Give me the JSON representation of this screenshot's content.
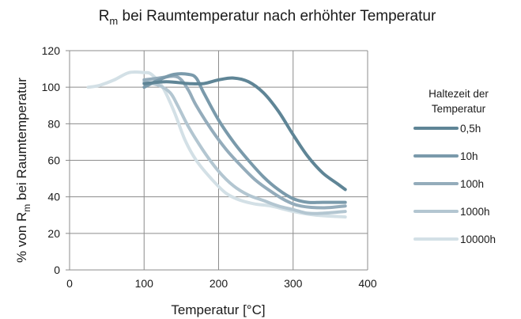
{
  "chart_data": {
    "type": "line",
    "title": {
      "main": "R",
      "sub": "m",
      "rest": " bei Raumtemperatur nach erhöhter Temperatur"
    },
    "xlabel": "Temperatur [°C]",
    "ylabel": {
      "pre": "% von R",
      "sub": "m",
      "post": " bei Raumtemperatur"
    },
    "xlim": [
      0,
      400
    ],
    "ylim": [
      0,
      120
    ],
    "x_ticks": [
      0,
      100,
      200,
      300,
      400
    ],
    "y_ticks": [
      0,
      20,
      40,
      60,
      80,
      100,
      120
    ],
    "grid": true,
    "legend_position": "right",
    "legend_title": [
      "Haltezeit der",
      "Temperatur"
    ],
    "series": [
      {
        "name": "0,5h",
        "color": "#5f8596",
        "points": [
          [
            100,
            102
          ],
          [
            130,
            103
          ],
          [
            160,
            102
          ],
          [
            180,
            102
          ],
          [
            200,
            104
          ],
          [
            220,
            105
          ],
          [
            240,
            103
          ],
          [
            260,
            97
          ],
          [
            280,
            87
          ],
          [
            300,
            74
          ],
          [
            320,
            62
          ],
          [
            340,
            53
          ],
          [
            360,
            47
          ],
          [
            370,
            44
          ]
        ]
      },
      {
        "name": "10h",
        "color": "#7a9aab",
        "points": [
          [
            100,
            100
          ],
          [
            120,
            104
          ],
          [
            140,
            107
          ],
          [
            160,
            107
          ],
          [
            170,
            105
          ],
          [
            180,
            97
          ],
          [
            200,
            82
          ],
          [
            220,
            70
          ],
          [
            240,
            60
          ],
          [
            260,
            51
          ],
          [
            280,
            44
          ],
          [
            300,
            39
          ],
          [
            320,
            37
          ],
          [
            340,
            37
          ],
          [
            370,
            37
          ]
        ]
      },
      {
        "name": "100h",
        "color": "#94acbb",
        "points": [
          [
            100,
            104
          ],
          [
            120,
            105
          ],
          [
            140,
            106
          ],
          [
            150,
            104
          ],
          [
            160,
            98
          ],
          [
            170,
            90
          ],
          [
            190,
            77
          ],
          [
            210,
            66
          ],
          [
            230,
            57
          ],
          [
            250,
            49
          ],
          [
            270,
            43
          ],
          [
            290,
            38
          ],
          [
            310,
            35
          ],
          [
            340,
            34
          ],
          [
            370,
            35
          ]
        ]
      },
      {
        "name": "1000h",
        "color": "#b3c6d1",
        "points": [
          [
            100,
            103
          ],
          [
            120,
            101
          ],
          [
            135,
            97
          ],
          [
            145,
            90
          ],
          [
            160,
            78
          ],
          [
            180,
            65
          ],
          [
            200,
            54
          ],
          [
            220,
            46
          ],
          [
            240,
            41
          ],
          [
            260,
            38
          ],
          [
            280,
            35
          ],
          [
            300,
            33
          ],
          [
            320,
            31
          ],
          [
            340,
            31
          ],
          [
            370,
            32
          ]
        ]
      },
      {
        "name": "10000h",
        "color": "#d3e0e6",
        "points": [
          [
            25,
            100
          ],
          [
            40,
            101
          ],
          [
            60,
            104
          ],
          [
            80,
            108
          ],
          [
            100,
            108
          ],
          [
            110,
            107
          ],
          [
            125,
            100
          ],
          [
            140,
            87
          ],
          [
            155,
            71
          ],
          [
            170,
            60
          ],
          [
            190,
            50
          ],
          [
            210,
            42
          ],
          [
            230,
            38
          ],
          [
            250,
            36
          ],
          [
            270,
            35
          ],
          [
            300,
            32
          ],
          [
            330,
            30
          ],
          [
            370,
            29
          ]
        ]
      }
    ]
  }
}
